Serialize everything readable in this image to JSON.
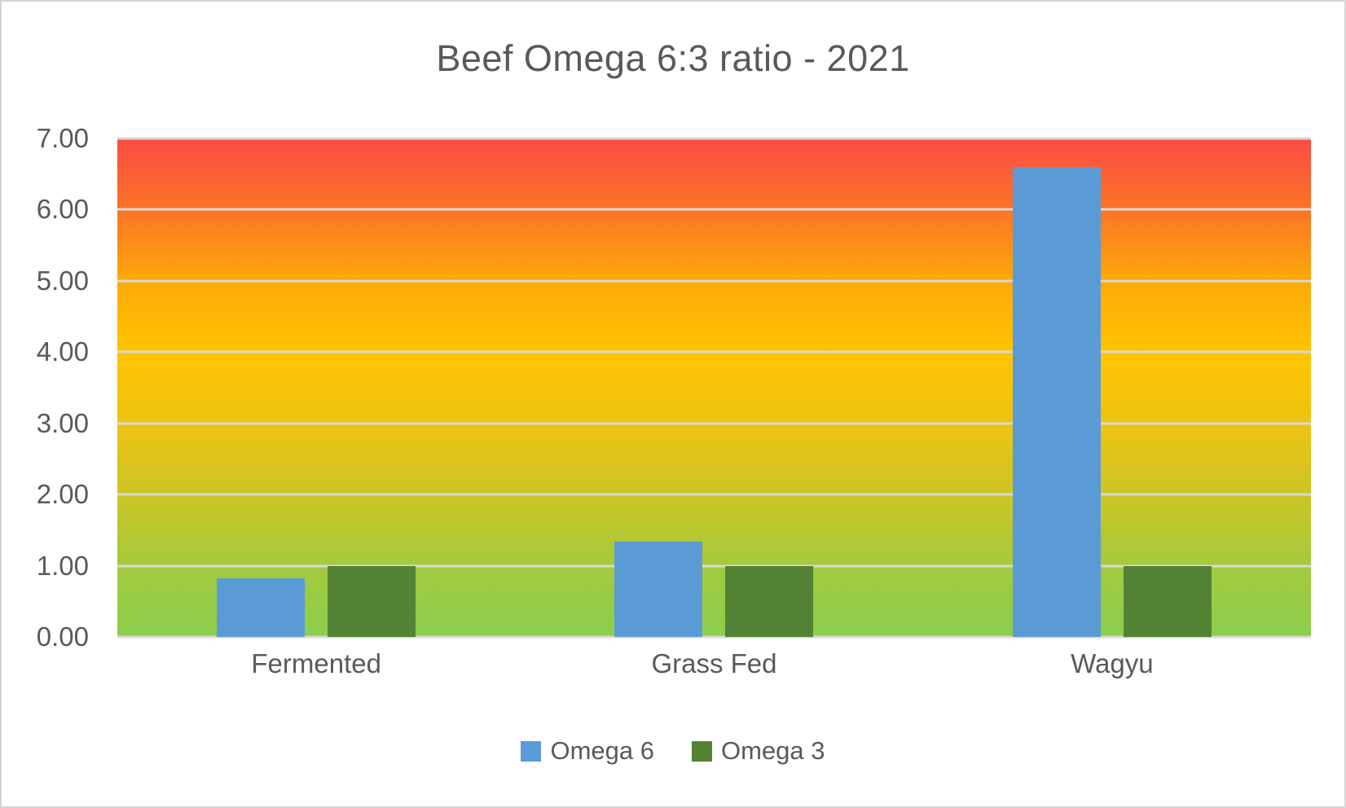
{
  "chart_data": {
    "type": "bar",
    "title": "Beef Omega 6:3 ratio - 2021",
    "categories": [
      "Fermented",
      "Grass Fed",
      "Wagyu"
    ],
    "series": [
      {
        "name": "Omega 6",
        "color": "#5B9BD5",
        "values": [
          0.82,
          1.34,
          6.6
        ]
      },
      {
        "name": "Omega 3",
        "color": "#548235",
        "values": [
          1.0,
          1.0,
          1.0
        ]
      }
    ],
    "xlabel": "",
    "ylabel": "",
    "ylim": [
      0,
      7
    ],
    "ytick_step": 1,
    "yticks": [
      "0.00",
      "1.00",
      "2.00",
      "3.00",
      "4.00",
      "5.00",
      "6.00",
      "7.00"
    ],
    "grid": true,
    "gridline_color": "#D9D9D9",
    "legend_position": "bottom",
    "plot_background_gradient_top_to_bottom": [
      "#FD4B45",
      "#FA7425",
      "#FEA90B",
      "#FFC400",
      "#EEC312",
      "#CDC525",
      "#A4CA3D",
      "#8CCE4D"
    ],
    "text_color": "#595959",
    "frame_border_color": "#D4D4D4"
  }
}
